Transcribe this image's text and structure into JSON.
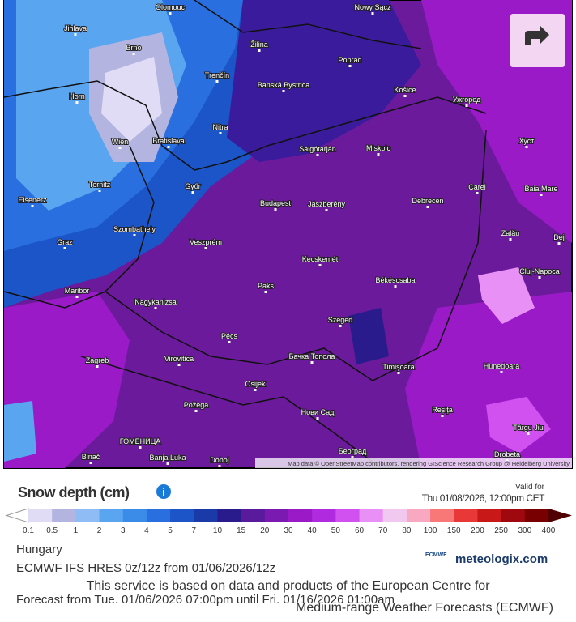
{
  "map": {
    "cities": [
      "Olomouc",
      "Nowy Sącz",
      "Jihlava",
      "Brno",
      "Žilina",
      "Poprad",
      "Trenčín",
      "Banská Bystrica",
      "Košice",
      "Ужгород",
      "Horn",
      "Wien",
      "Bratislava",
      "Nitra",
      "Salgótarján",
      "Miskolc",
      "Хуст",
      "Ternitz",
      "Győr",
      "Carei",
      "Baia Mare",
      "Eisenerz",
      "Budapest",
      "Jászberény",
      "Debrecen",
      "Szombathely",
      "Zalău",
      "Dej",
      "Graz",
      "Veszprém",
      "Kecskemét",
      "Cluj-Napoca",
      "Maribor",
      "Paks",
      "Békéscsaba",
      "Nagykanizsa",
      "Szeged",
      "Pécs",
      "Zagreb",
      "Virovitica",
      "Бачка Топола",
      "Timișoara",
      "Hunedoara",
      "Osijek",
      "Požega",
      "Нови Сад",
      "Reșița",
      "Târgu Jiu",
      "ГОМЕНИЦА",
      "Binač",
      "Banja Luka",
      "Doboj",
      "Београд",
      "Drobeta"
    ],
    "attribution": "Map data © OpenStreetMap contributors, rendering GIScience Research Group @ Heidelberg University"
  },
  "legend": {
    "title": "Snow depth (cm)",
    "valid_label": "Valid for",
    "valid_time": "Thu 01/08/2026, 12:00pm CET",
    "labels": [
      "0.1",
      "0.5",
      "1",
      "2",
      "3",
      "4",
      "5",
      "7",
      "10",
      "15",
      "20",
      "30",
      "40",
      "50",
      "60",
      "70",
      "80",
      "100",
      "150",
      "200",
      "250",
      "300",
      "400"
    ],
    "colors": [
      "#e0dcf5",
      "#b4b4e0",
      "#8fbcf4",
      "#5aa5f0",
      "#3a8ce8",
      "#2a6fe0",
      "#1c55c8",
      "#1a3aa8",
      "#2a1b8c",
      "#5a1a9c",
      "#7a1ab0",
      "#9a1ac8",
      "#b02ae0",
      "#d050f0",
      "#e890f5",
      "#f0c8f0",
      "#f8a8c0",
      "#f87878",
      "#e83838",
      "#c81818",
      "#a00810",
      "#780000"
    ]
  },
  "footer": {
    "region": "Hungary",
    "model": "ECMWF IFS HRES 0z/12z from 01/06/2026/12z",
    "forecast": "Forecast from Tue. 01/06/2026 07:00pm until Fri. 01/16/2026 01:00am",
    "notice_line1": "This service is based on data and products of the European Centre for",
    "notice_line2": "Medium-range Weather Forecasts (ECMWF)",
    "ecmwf_logo": "ECMWF",
    "brand": "meteologix.com"
  }
}
